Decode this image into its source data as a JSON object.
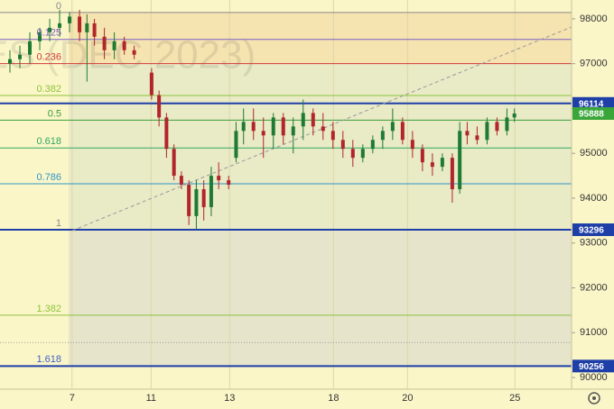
{
  "watermark": "ES (DEC 2023)",
  "chart_data": {
    "type": "candlestick",
    "x": [
      2,
      4,
      6,
      8,
      10,
      12,
      14,
      16,
      17.5,
      19,
      21,
      23,
      25,
      27,
      30.5,
      32,
      33.5,
      35,
      36.5,
      38,
      39.5,
      41,
      42.5,
      44,
      46,
      47.5,
      49,
      51,
      53,
      55,
      57,
      59,
      61,
      63,
      65,
      67,
      69,
      71,
      73,
      75,
      77,
      79,
      81,
      83,
      85,
      87,
      89,
      91,
      92.5,
      94,
      96,
      98,
      100,
      102,
      103.5
    ],
    "open": [
      97000,
      97100,
      97200,
      97500,
      97700,
      97800,
      97900,
      98050,
      97700,
      97900,
      97600,
      97300,
      97500,
      97300,
      96800,
      96300,
      95800,
      95100,
      94500,
      94300,
      93600,
      94200,
      93800,
      94500,
      94400,
      94900,
      95500,
      95700,
      95500,
      95400,
      95800,
      95400,
      95600,
      95900,
      95600,
      95500,
      95300,
      95100,
      94900,
      95100,
      95300,
      95500,
      95700,
      95300,
      95100,
      94800,
      94700,
      94900,
      94200,
      95500,
      95400,
      95300,
      95700,
      95500,
      95800
    ],
    "high": [
      97300,
      97400,
      97700,
      97800,
      98000,
      98200,
      98150,
      98200,
      98100,
      98000,
      97800,
      97700,
      97600,
      97400,
      96900,
      96400,
      95900,
      95200,
      94600,
      94400,
      94400,
      94400,
      94700,
      94800,
      94500,
      95700,
      96000,
      96000,
      95800,
      95900,
      95900,
      95800,
      96200,
      96000,
      95900,
      95700,
      95500,
      95300,
      95200,
      95400,
      95600,
      96000,
      95800,
      95500,
      95200,
      95000,
      95000,
      95000,
      95700,
      95700,
      95600,
      95800,
      95800,
      96000,
      96000
    ],
    "low": [
      96800,
      96900,
      97000,
      97300,
      97500,
      97600,
      97700,
      97500,
      96600,
      97400,
      97100,
      97100,
      97200,
      97100,
      96200,
      95600,
      94900,
      94400,
      94200,
      93400,
      93300,
      93500,
      93600,
      94200,
      94200,
      94800,
      95200,
      95300,
      94900,
      95100,
      95200,
      95000,
      95300,
      95400,
      95300,
      95100,
      94900,
      94700,
      94800,
      95000,
      95100,
      95300,
      95200,
      94900,
      94600,
      94500,
      94600,
      93900,
      94100,
      95200,
      95200,
      95200,
      95400,
      95400,
      95700
    ],
    "close": [
      97100,
      97200,
      97500,
      97700,
      97800,
      97900,
      98050,
      97700,
      97900,
      97600,
      97300,
      97500,
      97300,
      97200,
      96300,
      95800,
      95100,
      94500,
      94300,
      93600,
      94200,
      93800,
      94500,
      94400,
      94300,
      95500,
      95700,
      95500,
      95400,
      95800,
      95400,
      95600,
      95900,
      95600,
      95500,
      95300,
      95100,
      94900,
      95100,
      95300,
      95500,
      95700,
      95300,
      95100,
      94800,
      94700,
      94900,
      94200,
      95500,
      95400,
      95300,
      95700,
      95500,
      95800,
      95888
    ],
    "up_color": "#1e7a34",
    "down_color": "#b0262b",
    "xlim": [
      0,
      115
    ],
    "xticks": [
      {
        "value": 14.5,
        "label": "7"
      },
      {
        "value": 30.4,
        "label": "11"
      },
      {
        "value": 46.2,
        "label": "13"
      },
      {
        "value": 67.1,
        "label": "18"
      },
      {
        "value": 82,
        "label": "20"
      },
      {
        "value": 103.6,
        "label": "25"
      }
    ],
    "ylim": [
      89740,
      98420
    ],
    "yticks": [
      90000,
      91000,
      92000,
      93000,
      94000,
      95000,
      96000,
      97000,
      98000
    ],
    "fib_levels": [
      {
        "ratio": 0,
        "value": 98140,
        "color": "#8a8a8a"
      },
      {
        "ratio": 0.125,
        "value": 97540,
        "color": "#7d5fc4"
      },
      {
        "ratio": 0.236,
        "value": 97000,
        "color": "#d0393a"
      },
      {
        "ratio": 0.382,
        "value": 96290,
        "color": "#8cc43c"
      },
      {
        "ratio": 0.5,
        "value": 95740,
        "color": "#3c9c3c"
      },
      {
        "ratio": 0.618,
        "value": 95120,
        "color": "#2fa860"
      },
      {
        "ratio": 0.786,
        "value": 94320,
        "color": "#2f95c8"
      },
      {
        "ratio": 1,
        "value": 93296,
        "color": "#8a8a8a"
      },
      {
        "ratio": 1.382,
        "value": 91390,
        "color": "#8cc43c"
      },
      {
        "ratio": 1.618,
        "value": 90256,
        "color": "#3f5fc8"
      }
    ],
    "price_lines": [
      {
        "value": 96114,
        "color": "#1f3fa8"
      },
      {
        "value": 93296,
        "color": "#1f3fa8"
      },
      {
        "value": 90256,
        "color": "#1f3fa8"
      }
    ],
    "dotted_level": 90780,
    "last_price": {
      "value": 95888,
      "color": "#3aa63a"
    }
  }
}
